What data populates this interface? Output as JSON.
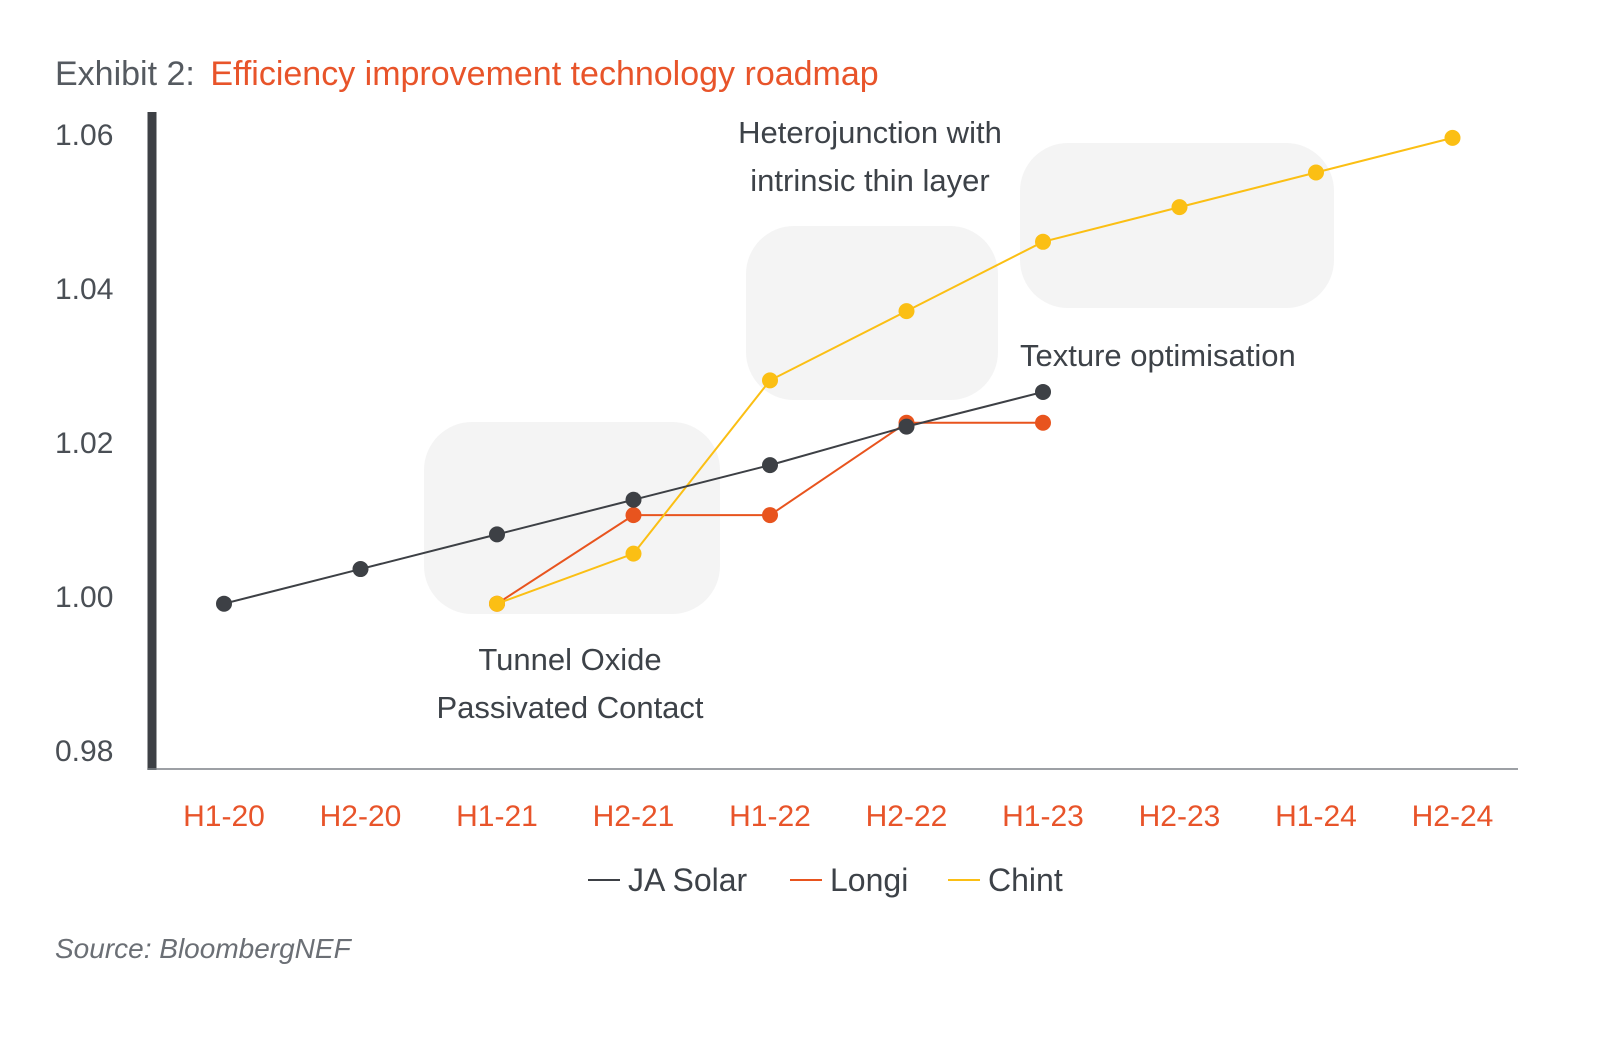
{
  "title": {
    "prefix": "Exhibit 2:",
    "main": "Efficiency improvement technology roadmap"
  },
  "source": "Source: BloombergNEF",
  "chart_data": {
    "type": "line",
    "x": [
      "H1-20",
      "H2-20",
      "H1-21",
      "H2-21",
      "H1-22",
      "H2-22",
      "H1-23",
      "H2-23",
      "H1-24",
      "H2-24"
    ],
    "yticks": [
      "0.98",
      "1.00",
      "1.02",
      "1.04",
      "1.06"
    ],
    "ylim": [
      0.98,
      1.063
    ],
    "grid": false,
    "legend_position": "bottom",
    "series": [
      {
        "name": "JA Solar",
        "color": "#3d4045",
        "values": [
          0.999,
          1.0035,
          1.008,
          1.0125,
          1.017,
          1.022,
          1.0265,
          null,
          null,
          null
        ]
      },
      {
        "name": "Longi",
        "color": "#e8541e",
        "values": [
          null,
          null,
          0.999,
          1.0105,
          1.0105,
          1.0225,
          1.0225,
          null,
          null,
          null
        ]
      },
      {
        "name": "Chint",
        "color": "#fbbf14",
        "values": [
          null,
          null,
          0.999,
          1.0055,
          1.028,
          1.037,
          1.046,
          1.0505,
          1.055,
          1.0595
        ]
      }
    ],
    "annotations": [
      {
        "text": [
          "Tunnel  Oxide",
          "Passivated Contact"
        ],
        "x_range": [
          "H1-21",
          "H2-21"
        ],
        "y_range": [
          0.999,
          1.0225
        ]
      },
      {
        "text": [
          "Heterojunction with",
          "intrinsic thin layer"
        ],
        "x_range": [
          "H1-22",
          "H2-22"
        ],
        "y_range": [
          1.028,
          1.0505
        ]
      },
      {
        "text": [
          "Texture optimisation"
        ],
        "x_range": [
          "H1-23",
          "H2-23"
        ],
        "y_range": [
          1.0425,
          1.064
        ]
      }
    ]
  }
}
